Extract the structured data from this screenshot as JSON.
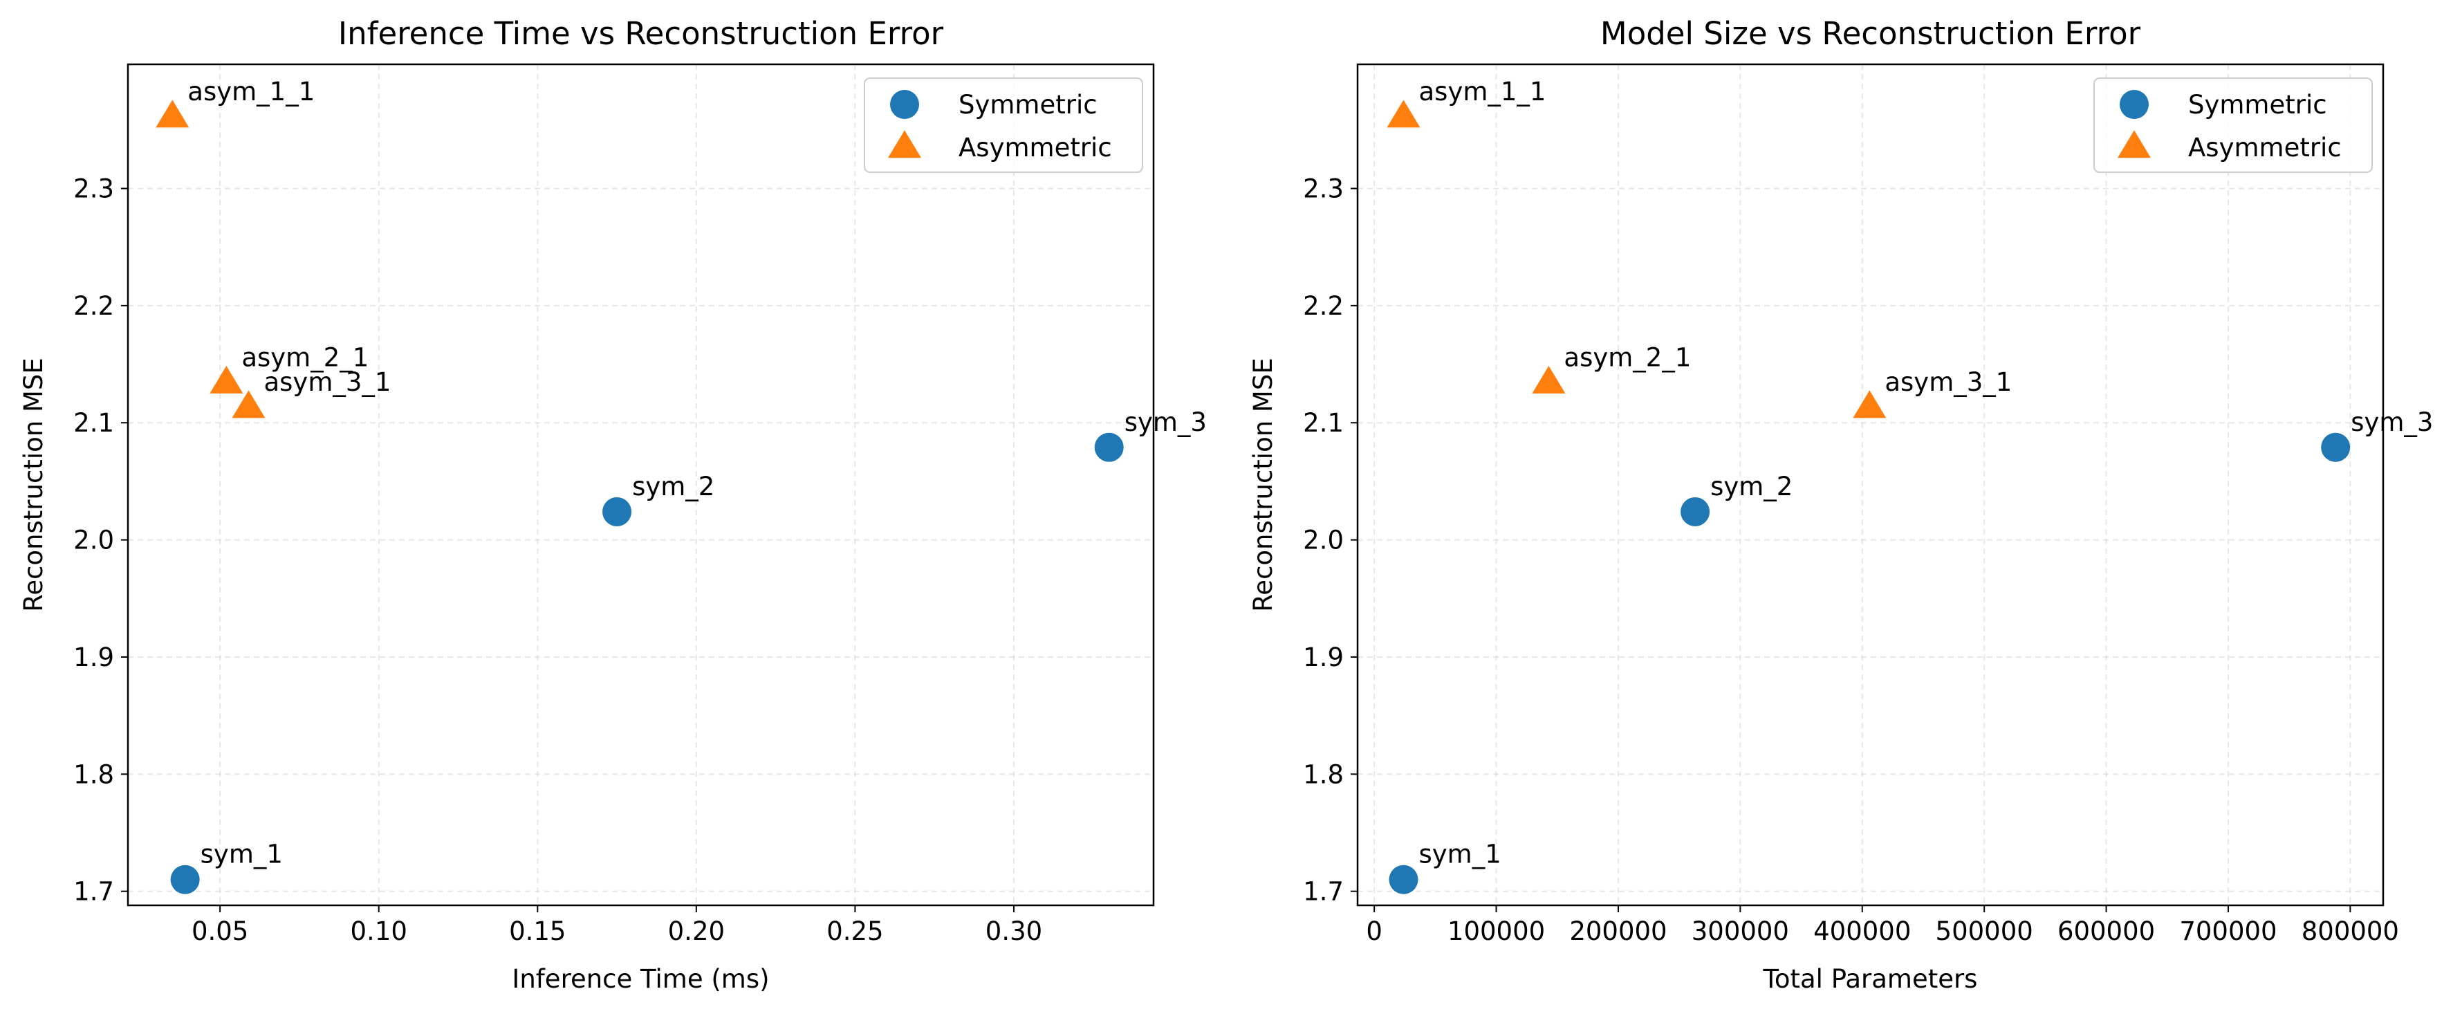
{
  "colors": {
    "symmetric": "#1f77b4",
    "asymmetric": "#ff7f0e"
  },
  "chart_data": [
    {
      "type": "scatter",
      "title": "Inference Time vs Reconstruction Error",
      "xlabel": "Inference Time (ms)",
      "ylabel": "Reconstruction MSE",
      "xlim": [
        0.021,
        0.344
      ],
      "ylim": [
        1.688,
        2.406
      ],
      "xticks": [
        0.05,
        0.1,
        0.15,
        0.2,
        0.25,
        0.3
      ],
      "xtick_labels": [
        "0.05",
        "0.10",
        "0.15",
        "0.20",
        "0.25",
        "0.30"
      ],
      "yticks": [
        1.7,
        1.8,
        1.9,
        2.0,
        2.1,
        2.2,
        2.3
      ],
      "ytick_labels": [
        "1.7",
        "1.8",
        "1.9",
        "2.0",
        "2.1",
        "2.2",
        "2.3"
      ],
      "grid": true,
      "legend_position": "top-right",
      "series": [
        {
          "name": "Symmetric",
          "marker": "circle",
          "color": "#1f77b4",
          "points": [
            {
              "label": "sym_1",
              "x": 0.039,
              "y": 1.71
            },
            {
              "label": "sym_2",
              "x": 0.175,
              "y": 2.024
            },
            {
              "label": "sym_3",
              "x": 0.33,
              "y": 2.079
            }
          ]
        },
        {
          "name": "Asymmetric",
          "marker": "triangle",
          "color": "#ff7f0e",
          "points": [
            {
              "label": "asym_1_1",
              "x": 0.035,
              "y": 2.361
            },
            {
              "label": "asym_2_1",
              "x": 0.052,
              "y": 2.134
            },
            {
              "label": "asym_3_1",
              "x": 0.059,
              "y": 2.113
            }
          ]
        }
      ]
    },
    {
      "type": "scatter",
      "title": "Model Size vs Reconstruction Error",
      "xlabel": "Total Parameters",
      "ylabel": "Reconstruction MSE",
      "xlim": [
        -13700,
        827000
      ],
      "ylim": [
        1.688,
        2.406
      ],
      "xticks": [
        0,
        100000,
        200000,
        300000,
        400000,
        500000,
        600000,
        700000,
        800000
      ],
      "xtick_labels": [
        "0",
        "100000",
        "200000",
        "300000",
        "400000",
        "500000",
        "600000",
        "700000",
        "800000"
      ],
      "yticks": [
        1.7,
        1.8,
        1.9,
        2.0,
        2.1,
        2.2,
        2.3
      ],
      "ytick_labels": [
        "1.7",
        "1.8",
        "1.9",
        "2.0",
        "2.1",
        "2.2",
        "2.3"
      ],
      "grid": true,
      "legend_position": "top-right",
      "series": [
        {
          "name": "Symmetric",
          "marker": "circle",
          "color": "#1f77b4",
          "points": [
            {
              "label": "sym_1",
              "x": 24000,
              "y": 1.71
            },
            {
              "label": "sym_2",
              "x": 263000,
              "y": 2.024
            },
            {
              "label": "sym_3",
              "x": 788000,
              "y": 2.079
            }
          ]
        },
        {
          "name": "Asymmetric",
          "marker": "triangle",
          "color": "#ff7f0e",
          "points": [
            {
              "label": "asym_1_1",
              "x": 24000,
              "y": 2.361
            },
            {
              "label": "asym_2_1",
              "x": 143000,
              "y": 2.134
            },
            {
              "label": "asym_3_1",
              "x": 406000,
              "y": 2.113
            }
          ]
        }
      ]
    }
  ]
}
